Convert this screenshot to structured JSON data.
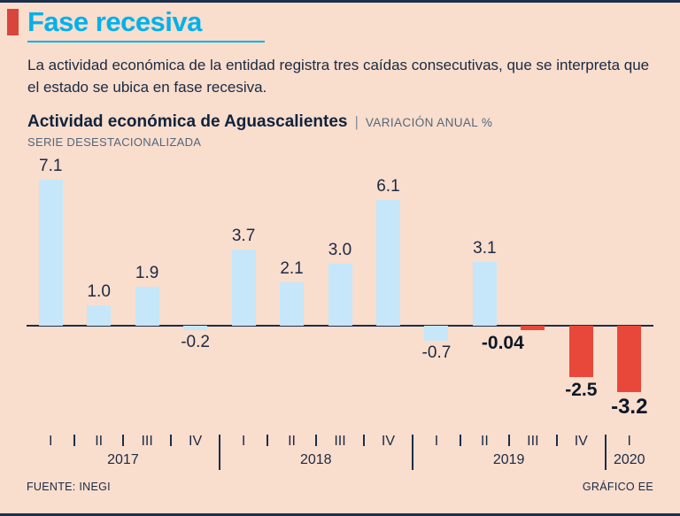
{
  "header": {
    "title": "Fase recesiva",
    "intro": "La actividad económica de la entidad registra tres caídas consecutivas, que se interpreta que el estado se ubica en fase recesiva."
  },
  "chart_head": {
    "title": "Actividad económica de Aguascalientes",
    "divider": "|",
    "subtitle": "VARIACIÓN ANUAL %",
    "note": "SERIE DESESTACIONALIZADA"
  },
  "footer": {
    "source": "FUENTE: INEGI",
    "credit": "GRÁFICO EE"
  },
  "colors": {
    "background": "#f9ddcd",
    "navy": "#1b2f4a",
    "cyan": "#00b1ea",
    "red": "#e8483a",
    "light_blue": "#c5e7f9",
    "muted": "#54677a"
  },
  "chart_data": {
    "type": "bar",
    "title": "Actividad económica de Aguascalientes",
    "subtitle": "VARIACIÓN ANUAL %",
    "note": "SERIE DESESTACIONALIZADA",
    "ylabel": "Variación anual %",
    "categories": [
      "I",
      "II",
      "III",
      "IV",
      "I",
      "II",
      "III",
      "IV",
      "I",
      "II",
      "III",
      "IV",
      "I"
    ],
    "year_groups": [
      {
        "year": "2017",
        "count": 4
      },
      {
        "year": "2018",
        "count": 4
      },
      {
        "year": "2019",
        "count": 4
      },
      {
        "year": "2020",
        "count": 1
      }
    ],
    "values": [
      7.1,
      1.0,
      1.9,
      -0.2,
      3.7,
      2.1,
      3.0,
      6.1,
      -0.7,
      3.1,
      -0.04,
      -2.5,
      -3.2
    ],
    "labels": [
      "7.1",
      "1.0",
      "1.9",
      "-0.2",
      "3.7",
      "2.1",
      "3.0",
      "6.1",
      "-0.7",
      "3.1",
      "-0.04",
      "-2.5",
      "-3.2"
    ],
    "bar_colors": [
      "blue",
      "blue",
      "blue",
      "blue",
      "blue",
      "blue",
      "blue",
      "blue",
      "blue",
      "blue",
      "red",
      "red",
      "red"
    ],
    "label_styles": [
      "normal",
      "normal",
      "normal",
      "normal",
      "normal",
      "normal",
      "normal",
      "normal",
      "normal",
      "normal",
      "strong",
      "strong",
      "xl"
    ],
    "label_dx": [
      0,
      0,
      0,
      0,
      0,
      0,
      0,
      0,
      0,
      0,
      -34,
      0,
      0
    ],
    "ylim": [
      -3.5,
      7.5
    ],
    "grid": false,
    "legend": false
  }
}
